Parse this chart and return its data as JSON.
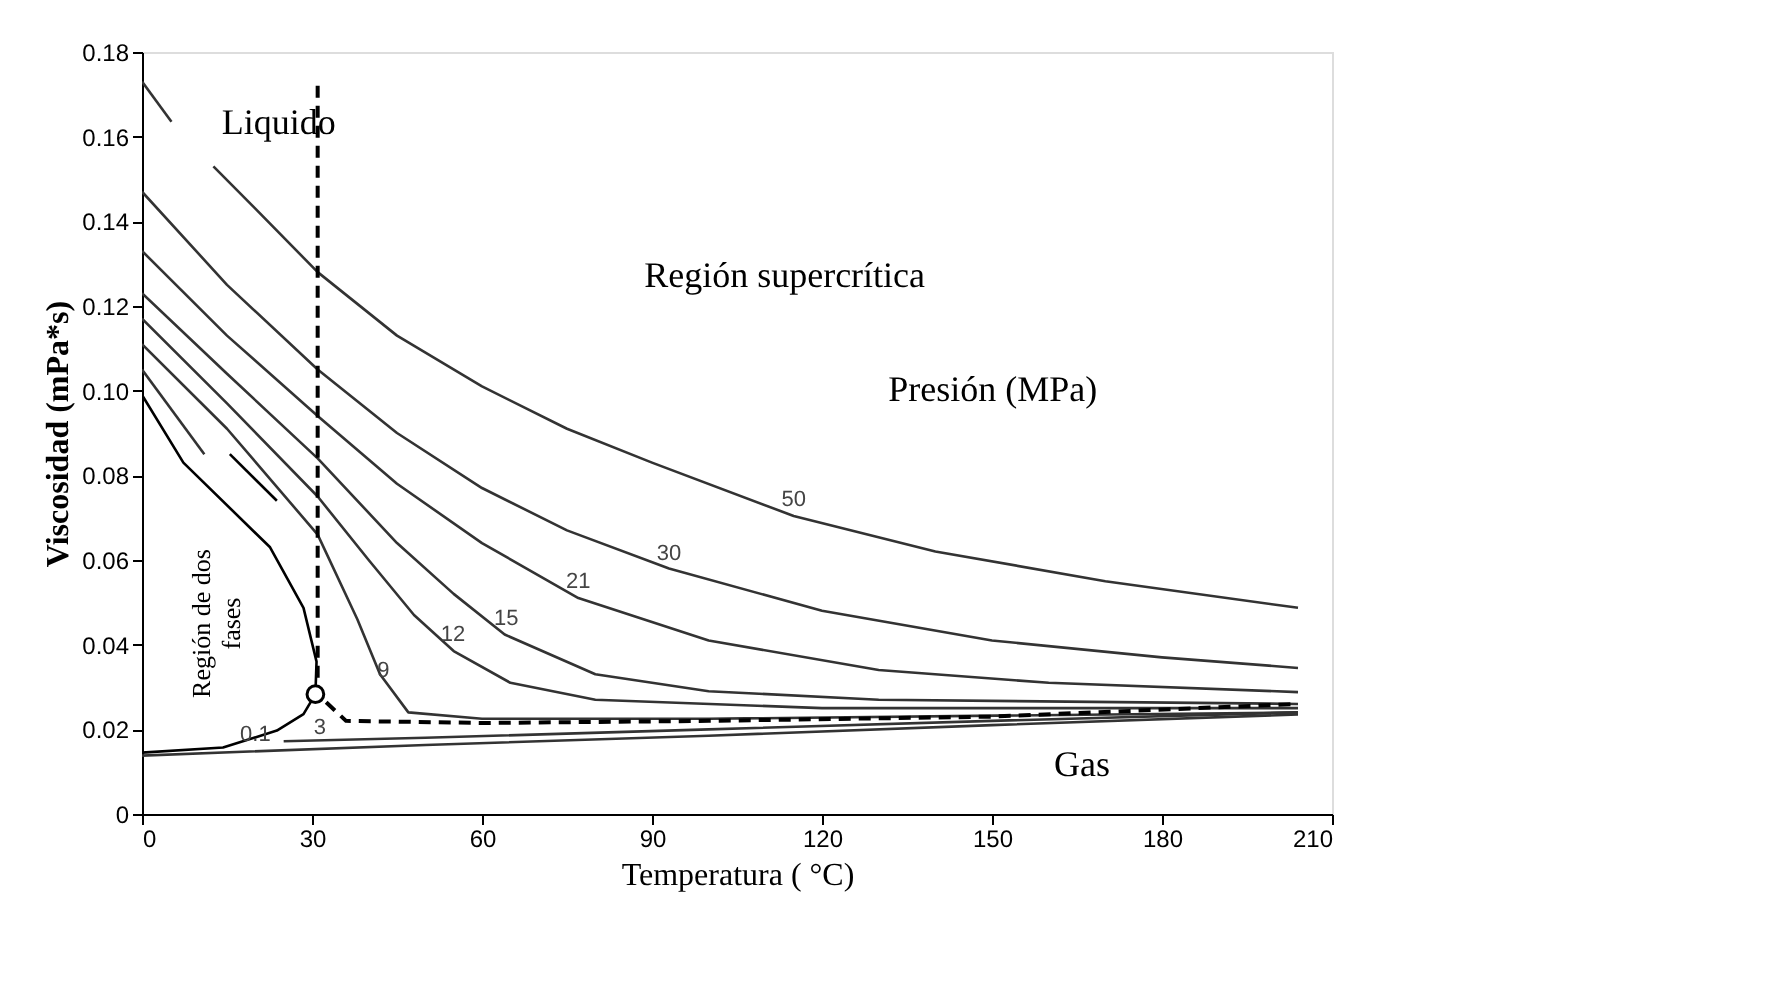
{
  "chart_data": {
    "type": "line",
    "xlabel": "Temperatura ( °C)",
    "ylabel": "Viscosidad (mPa*s)",
    "xlim": [
      0,
      210
    ],
    "ylim": [
      0,
      0.18
    ],
    "xticks": [
      0,
      30,
      60,
      90,
      120,
      150,
      180,
      210
    ],
    "yticks": [
      0,
      0.02,
      0.04,
      0.06,
      0.08,
      {
        "value": 0.1,
        "label": "0.10"
      },
      0.12,
      0.14,
      0.16,
      0.18
    ],
    "grid": false,
    "line_style": "solid",
    "series": [
      {
        "color": "#333333",
        "x": [
          0,
          5.2
        ],
        "values": [
          0.173,
          0.1635
        ]
      },
      {
        "color": "#333333",
        "x": [
          12.6,
          20,
          31,
          45,
          60,
          75,
          90,
          115,
          140,
          170,
          204
        ],
        "values": [
          0.153,
          0.143,
          0.128,
          0.113,
          0.101,
          0.091,
          0.083,
          0.0704,
          0.062,
          0.055,
          0.0487
        ]
      },
      {
        "color": "#333333",
        "x": [
          0,
          15,
          31,
          45,
          60,
          75,
          93,
          120,
          150,
          180,
          204
        ],
        "values": [
          0.147,
          0.125,
          0.105,
          0.09,
          0.077,
          0.067,
          0.058,
          0.048,
          0.041,
          0.037,
          0.0345
        ]
      },
      {
        "color": "#333333",
        "x": [
          0,
          15,
          31,
          45,
          60,
          77,
          100,
          130,
          160,
          204
        ],
        "values": [
          0.133,
          0.113,
          0.094,
          0.078,
          0.064,
          0.051,
          0.041,
          0.034,
          0.031,
          0.0288
        ]
      },
      {
        "color": "#333333",
        "x": [
          0,
          15,
          31,
          45,
          55,
          64,
          80,
          100,
          130,
          204
        ],
        "values": [
          0.123,
          0.104,
          0.084,
          0.064,
          0.052,
          0.0424,
          0.033,
          0.029,
          0.027,
          0.026
        ]
      },
      {
        "color": "#333333",
        "x": [
          0,
          15,
          31,
          40,
          48,
          55,
          65,
          80,
          120,
          204
        ],
        "values": [
          0.117,
          0.097,
          0.075,
          0.06,
          0.047,
          0.0385,
          0.031,
          0.027,
          0.025,
          0.025
        ]
      },
      {
        "color": "#333333",
        "x": [
          0,
          15,
          31,
          38,
          42,
          47,
          60,
          100,
          204
        ],
        "values": [
          0.111,
          0.091,
          0.066,
          0.046,
          0.033,
          0.024,
          0.0225,
          0.0225,
          0.024
        ]
      },
      {
        "color": "#333333",
        "x": [
          0,
          11
        ],
        "values": [
          0.105,
          0.085
        ]
      },
      {
        "color": "#000000",
        "x": [
          15.5,
          23.8
        ],
        "values": [
          0.085,
          0.074
        ]
      },
      {
        "color": "#000000",
        "x": [
          0,
          7.3,
          22.6,
          28.5,
          30.8,
          30.6,
          28.5,
          23.8,
          14.3,
          0
        ],
        "values": [
          0.099,
          0.083,
          0.063,
          0.0487,
          0.036,
          0.0283,
          0.0236,
          0.0197,
          0.0157,
          0.0145
        ]
      },
      {
        "color": "#333333",
        "x": [
          0,
          50,
          100,
          150,
          204
        ],
        "values": [
          0.0138,
          0.0163,
          0.0185,
          0.021,
          0.0235
        ]
      },
      {
        "color": "#333333",
        "x": [
          25,
          50,
          100,
          150,
          204
        ],
        "values": [
          0.0172,
          0.018,
          0.02,
          0.022,
          0.024
        ]
      },
      {
        "color": "#000000",
        "line_style": "dashed",
        "x": [
          31,
          31,
          36,
          60,
          100,
          150,
          204
        ],
        "values": [
          0.172,
          0.0283,
          0.022,
          0.0215,
          0.022,
          0.023,
          0.026
        ]
      },
      {
        "type": "scatter",
        "color": "#000000",
        "marker": "circle",
        "x": [
          30.6
        ],
        "values": [
          0.0283
        ]
      }
    ],
    "annotations": [
      "Liquido",
      "Región supercrítica",
      "Presión (MPa)",
      "Gas",
      "Región de dos\nfases",
      {
        "text": "50",
        "x": 115,
        "y": 0.0704
      },
      {
        "text": "30",
        "x": 93,
        "y": 0.0576
      },
      {
        "text": "21",
        "x": 77,
        "y": 0.051
      },
      {
        "text": "15",
        "x": 64.3,
        "y": 0.0424
      },
      {
        "text": "12",
        "x": 54.9,
        "y": 0.0385
      },
      {
        "text": "9",
        "x": 42.6,
        "y": 0.03
      },
      {
        "text": "3",
        "x": 31.4,
        "y": 0.0165
      },
      {
        "text": "0.1",
        "x": 20,
        "y": 0.0148
      }
    ]
  }
}
